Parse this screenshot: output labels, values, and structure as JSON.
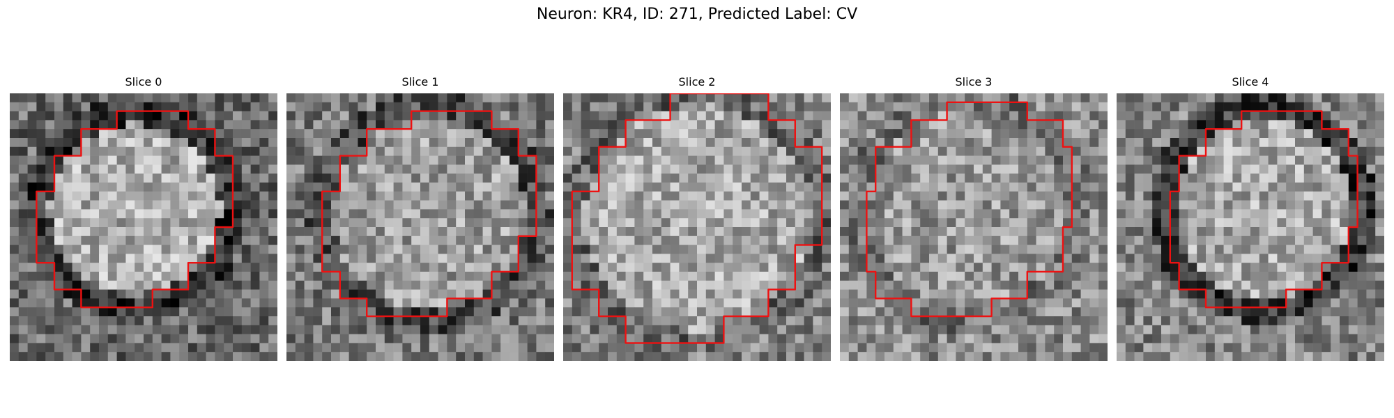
{
  "figure": {
    "title": "Neuron: KR4, ID: 271, Predicted Label: CV"
  },
  "panels": [
    {
      "title": "Slice 0",
      "seed": 11,
      "base": 0.42,
      "ring": 0.2,
      "inner": 0.68,
      "contour_color": "#ee1111"
    },
    {
      "title": "Slice 1",
      "seed": 23,
      "base": 0.48,
      "ring": 0.3,
      "inner": 0.62,
      "contour_color": "#ee1111"
    },
    {
      "title": "Slice 2",
      "seed": 37,
      "base": 0.5,
      "ring": 0.4,
      "inner": 0.66,
      "contour_color": "#ee1111"
    },
    {
      "title": "Slice 3",
      "seed": 41,
      "base": 0.55,
      "ring": 0.45,
      "inner": 0.6,
      "contour_color": "#ee1111"
    },
    {
      "title": "Slice 4",
      "seed": 53,
      "base": 0.52,
      "ring": 0.22,
      "inner": 0.66,
      "contour_color": "#ee1111"
    }
  ]
}
